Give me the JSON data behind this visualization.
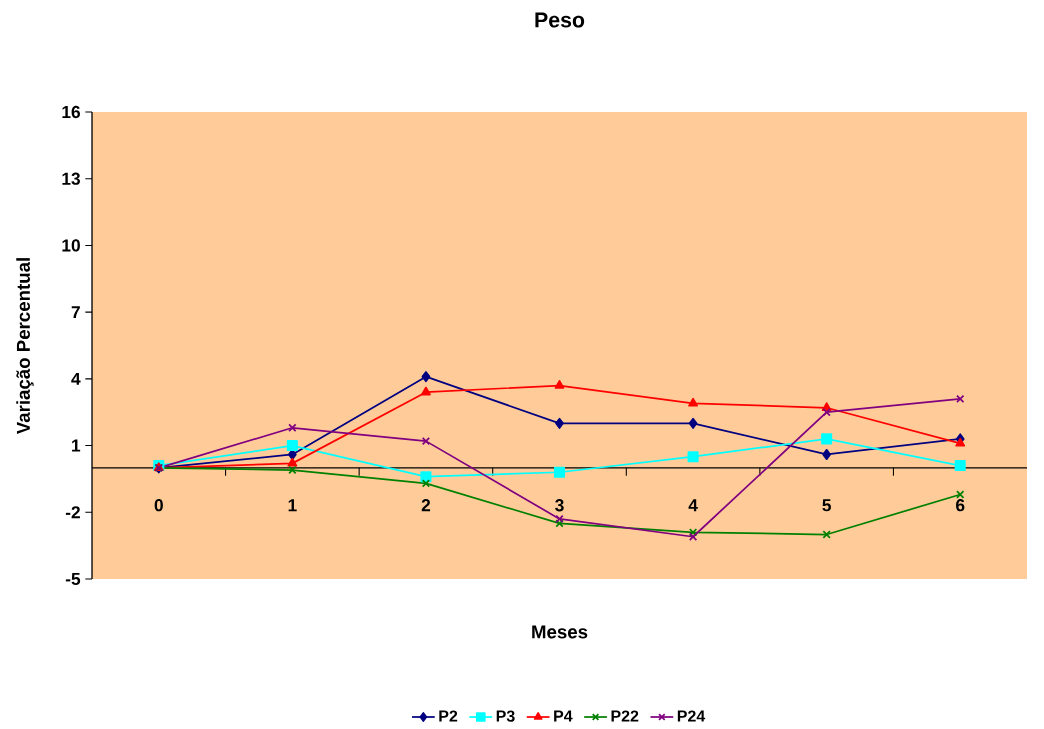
{
  "chart_data": {
    "type": "line",
    "title": "Peso",
    "xlabel": "Meses",
    "ylabel": "Variação Percentual",
    "categories": [
      "0",
      "1",
      "2",
      "3",
      "4",
      "5",
      "6"
    ],
    "series": [
      {
        "name": "P2",
        "color": "#000080",
        "marker": "diamond",
        "values": [
          0,
          0.6,
          4.1,
          2.0,
          2.0,
          0.6,
          1.3
        ]
      },
      {
        "name": "P3",
        "color": "#00FFFF",
        "marker": "square",
        "values": [
          0.1,
          1.0,
          -0.4,
          -0.2,
          0.5,
          1.3,
          0.1
        ]
      },
      {
        "name": "P4",
        "color": "#FF0000",
        "marker": "triangle",
        "values": [
          0,
          0.2,
          3.4,
          3.7,
          2.9,
          2.7,
          1.1
        ]
      },
      {
        "name": "P22",
        "color": "#008000",
        "marker": "cross",
        "values": [
          0,
          -0.1,
          -0.7,
          -2.5,
          -2.9,
          -3.0,
          -1.2
        ]
      },
      {
        "name": "P24",
        "color": "#800080",
        "marker": "cross",
        "values": [
          0,
          1.8,
          1.2,
          -2.3,
          -3.1,
          2.5,
          3.1
        ]
      }
    ],
    "ylim": [
      -5,
      16
    ],
    "yticks": [
      -5,
      -2,
      1,
      4,
      7,
      10,
      13,
      16
    ],
    "legend": "bottom"
  }
}
